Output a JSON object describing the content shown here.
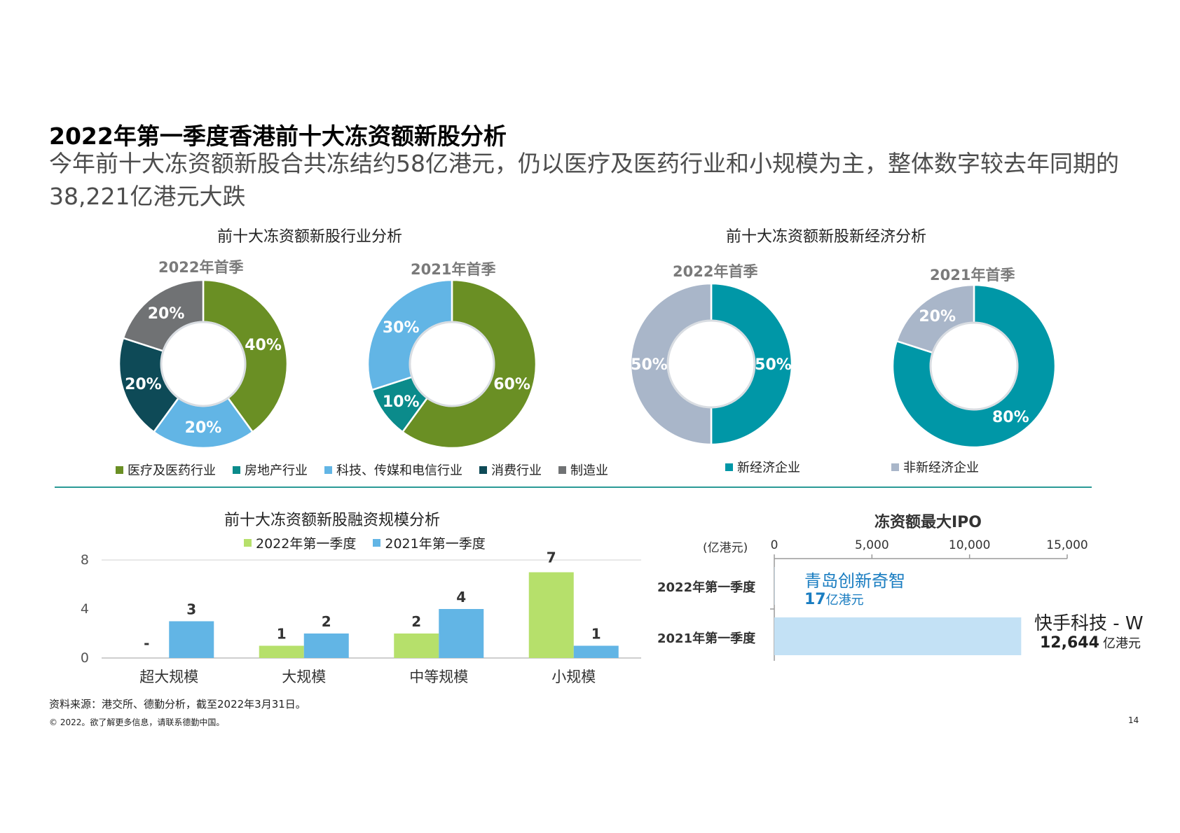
{
  "title": "2022年第一季度香港前十大冻资额新股分析",
  "subtitle": "今年前十大冻资额新股合共冻结约58亿港元，仍以医疗及医药行业和小规模为主，整体数字较去年同期的38,221亿港元大跌",
  "colors": {
    "healthcare": "#6a8f24",
    "realestate": "#0b8b8b",
    "tech": "#62b5e5",
    "consumer": "#0e4a57",
    "manufacturing": "#707274",
    "new_economy": "#0097a7",
    "non_new_economy": "#a9b6c9",
    "bar_2022": "#b6e06b",
    "bar_2021": "#62b5e5",
    "ipo_bar": "#c3e1f5",
    "divider": "#2a9a96",
    "ipo_label": "#1a7dc1"
  },
  "industry": {
    "heading": "前十大冻资额新股行业分析",
    "legend": [
      "医疗及医药行业",
      "房地产行业",
      "科技、传媒和电信行业",
      "消费行业",
      "制造业"
    ]
  },
  "economy": {
    "heading": "前十大冻资额新股新经济分析",
    "legend": [
      "新经济企业",
      "非新经济企业"
    ]
  },
  "scale": {
    "heading": "前十大冻资额新股融资规模分析",
    "legend": [
      "2022年第一季度",
      "2021年第一季度"
    ]
  },
  "ipo": {
    "heading": "冻资额最大IPO",
    "unit_label": "(亿港元)",
    "rows": [
      "2022年第一季度",
      "2021年第一季度"
    ],
    "company_2022": "青岛创新奇智",
    "amount_2022": "17",
    "company_2021": "快手科技 - W",
    "amount_2021": "12,644",
    "unit_suffix": "亿港元"
  },
  "chart_data": [
    {
      "type": "pie",
      "title": "2022年首季",
      "labels": [
        "医疗及医药行业",
        "房地产行业",
        "科技、传媒和电信行业",
        "消费行业",
        "制造业"
      ],
      "values": [
        40,
        0,
        20,
        20,
        20
      ],
      "value_labels": [
        "40%",
        "",
        "20%",
        "20%",
        "20%"
      ]
    },
    {
      "type": "pie",
      "title": "2021年首季",
      "labels": [
        "医疗及医药行业",
        "房地产行业",
        "科技、传媒和电信行业",
        "消费行业",
        "制造业"
      ],
      "values": [
        60,
        10,
        30,
        0,
        0
      ],
      "value_labels": [
        "60%",
        "10%",
        "30%",
        "",
        ""
      ]
    },
    {
      "type": "pie",
      "title": "2022年首季",
      "labels": [
        "新经济企业",
        "非新经济企业"
      ],
      "values": [
        50,
        50
      ],
      "value_labels": [
        "50%",
        "50%"
      ]
    },
    {
      "type": "pie",
      "title": "2021年首季",
      "labels": [
        "新经济企业",
        "非新经济企业"
      ],
      "values": [
        80,
        20
      ],
      "value_labels": [
        "80%",
        "20%"
      ]
    },
    {
      "type": "bar",
      "categories": [
        "超大规模",
        "大规模",
        "中等规模",
        "小规模"
      ],
      "series": [
        {
          "name": "2022年第一季度",
          "values": [
            0,
            1,
            2,
            7
          ],
          "value_labels": [
            "-",
            "1",
            "2",
            "7"
          ]
        },
        {
          "name": "2021年第一季度",
          "values": [
            3,
            2,
            4,
            1
          ],
          "value_labels": [
            "3",
            "2",
            "4",
            "1"
          ]
        }
      ],
      "ylim": [
        0,
        8
      ],
      "yticks": [
        "0",
        "4",
        "8"
      ],
      "legend": "top"
    },
    {
      "type": "bar",
      "orientation": "horizontal",
      "categories": [
        "2022年第一季度",
        "2021年第一季度"
      ],
      "values": [
        17,
        12644
      ],
      "xlim": [
        0,
        15000
      ],
      "xticks": [
        "0",
        "5,000",
        "10,000",
        "15,000"
      ]
    }
  ],
  "footer": {
    "source": "资料来源：港交所、德勤分析，截至2022年3月31日。",
    "copyright": "© 2022。欲了解更多信息，请联系德勤中国。",
    "page_number": "14"
  }
}
